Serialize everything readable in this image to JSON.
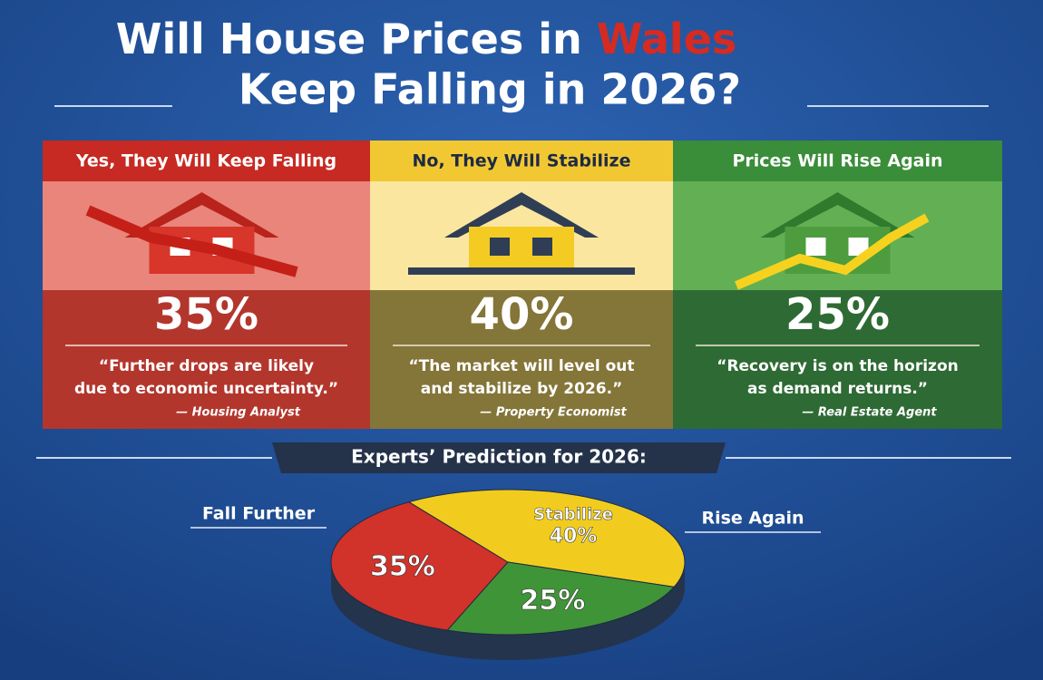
{
  "title": {
    "before": "Will House Prices in",
    "highlight": "Wales",
    "line2": "Keep Falling in 2026?"
  },
  "cards": [
    {
      "heading": "Yes, They Will Keep Falling",
      "percent": "35%",
      "quote": [
        "“Further drops are likely",
        "due to economic uncertainty.”"
      ],
      "source": "— Housing Analyst"
    },
    {
      "heading": "No, They Will Stabilize",
      "percent": "40%",
      "quote": [
        "“The market will level out",
        "and stabilize by 2026.”"
      ],
      "source": "— Property Economist"
    },
    {
      "heading": "Prices Will Rise Again",
      "percent": "25%",
      "quote": [
        "“Recovery is on the horizon",
        "as demand returns.”"
      ],
      "source": "— Real Estate Agent"
    }
  ],
  "prediction_title": "Experts’ Prediction for 2026:",
  "chart_data": {
    "type": "pie",
    "categories": [
      "Fall Further",
      "Stabilize",
      "Rise Again"
    ],
    "values": [
      35,
      40,
      25
    ],
    "value_labels": [
      "35%",
      "40%",
      "25%"
    ],
    "colors": [
      "#d1322a",
      "#f1cc1f",
      "#3f9437"
    ]
  }
}
